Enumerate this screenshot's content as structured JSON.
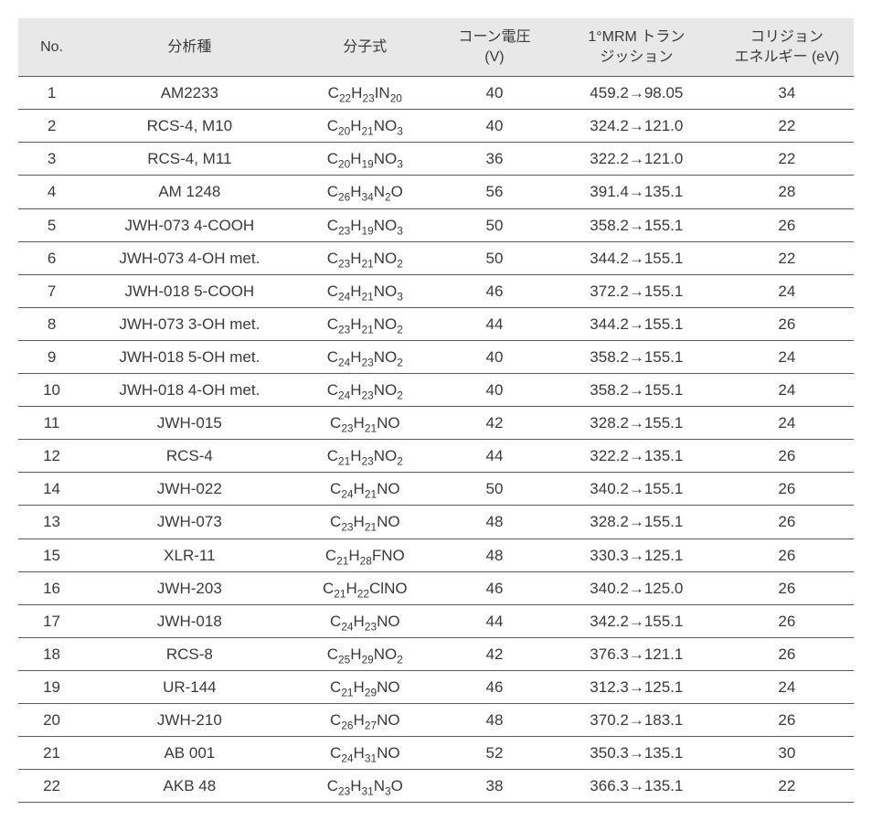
{
  "table": {
    "type": "table",
    "background_color": "#ffffff",
    "header_background": "#e8e8e8",
    "text_color": "#3a3a3a",
    "border_color": "#5a5a5a",
    "header_fontsize": 16,
    "cell_fontsize": 17,
    "columns": [
      {
        "key": "no",
        "label": "No.",
        "width_pct": 8
      },
      {
        "key": "name",
        "label": "分析種",
        "width_pct": 25
      },
      {
        "key": "mf",
        "label": "分子式",
        "width_pct": 17
      },
      {
        "key": "cv",
        "label": "コーン電圧\n(V)",
        "width_pct": 14
      },
      {
        "key": "mrm",
        "label": "1°MRM トラン\nジッション",
        "width_pct": 20
      },
      {
        "key": "ce",
        "label": "コリジョン\nエネルギー (eV)",
        "width_pct": 16
      }
    ],
    "rows": [
      {
        "no": "1",
        "name": "AM2233",
        "mf": "C22H23IN20",
        "cv": "40",
        "mrm": "459.2→98.05",
        "ce": "34"
      },
      {
        "no": "2",
        "name": "RCS-4, M10",
        "mf": "C20H21NO3",
        "cv": "40",
        "mrm": "324.2→121.0",
        "ce": "22"
      },
      {
        "no": "3",
        "name": "RCS-4, M11",
        "mf": "C20H19NO3",
        "cv": "36",
        "mrm": "322.2→121.0",
        "ce": "22"
      },
      {
        "no": "4",
        "name": "AM 1248",
        "mf": "C26H34N2O",
        "cv": "56",
        "mrm": "391.4→135.1",
        "ce": "28"
      },
      {
        "no": "5",
        "name": "JWH-073 4-COOH",
        "mf": "C23H19NO3",
        "cv": "50",
        "mrm": "358.2→155.1",
        "ce": "26"
      },
      {
        "no": "6",
        "name": "JWH-073 4-OH met.",
        "mf": "C23H21NO2",
        "cv": "50",
        "mrm": "344.2→155.1",
        "ce": "22"
      },
      {
        "no": "7",
        "name": "JWH-018 5-COOH",
        "mf": "C24H21NO3",
        "cv": "46",
        "mrm": "372.2→155.1",
        "ce": "24"
      },
      {
        "no": "8",
        "name": "JWH-073 3-OH met.",
        "mf": "C23H21NO2",
        "cv": "44",
        "mrm": "344.2→155.1",
        "ce": "26"
      },
      {
        "no": "9",
        "name": "JWH-018 5-OH met.",
        "mf": "C24H23NO2",
        "cv": "40",
        "mrm": "358.2→155.1",
        "ce": "24"
      },
      {
        "no": "10",
        "name": "JWH-018 4-OH met.",
        "mf": "C24H23NO2",
        "cv": "40",
        "mrm": "358.2→155.1",
        "ce": "24"
      },
      {
        "no": "11",
        "name": "JWH-015",
        "mf": "C23H21NO",
        "cv": "42",
        "mrm": "328.2→155.1",
        "ce": "24"
      },
      {
        "no": "12",
        "name": "RCS-4",
        "mf": "C21H23NO2",
        "cv": "44",
        "mrm": "322.2→135.1",
        "ce": "26"
      },
      {
        "no": "14",
        "name": "JWH-022",
        "mf": "C24H21NO",
        "cv": "50",
        "mrm": "340.2→155.1",
        "ce": "26"
      },
      {
        "no": "13",
        "name": "JWH-073",
        "mf": "C23H21NO",
        "cv": "48",
        "mrm": "328.2→155.1",
        "ce": "26"
      },
      {
        "no": "15",
        "name": "XLR-11",
        "mf": "C21H28FNO",
        "cv": "48",
        "mrm": "330.3→125.1",
        "ce": "26"
      },
      {
        "no": "16",
        "name": "JWH-203",
        "mf": "C21H22ClNO",
        "cv": "46",
        "mrm": "340.2→125.0",
        "ce": "26"
      },
      {
        "no": "17",
        "name": "JWH-018",
        "mf": "C24H23NO",
        "cv": "44",
        "mrm": "342.2→155.1",
        "ce": "26"
      },
      {
        "no": "18",
        "name": "RCS-8",
        "mf": "C25H29NO2",
        "cv": "42",
        "mrm": "376.3→121.1",
        "ce": "26"
      },
      {
        "no": "19",
        "name": "UR-144",
        "mf": "C21H29NO",
        "cv": "46",
        "mrm": "312.3→125.1",
        "ce": "24"
      },
      {
        "no": "20",
        "name": "JWH-210",
        "mf": "C26H27NO",
        "cv": "48",
        "mrm": "370.2→183.1",
        "ce": "26"
      },
      {
        "no": "21",
        "name": "AB 001",
        "mf": "C24H31NO",
        "cv": "52",
        "mrm": "350.3→135.1",
        "ce": "30"
      },
      {
        "no": "22",
        "name": "AKB 48",
        "mf": "C23H31N3O",
        "cv": "38",
        "mrm": "366.3→135.1",
        "ce": "22"
      }
    ]
  }
}
